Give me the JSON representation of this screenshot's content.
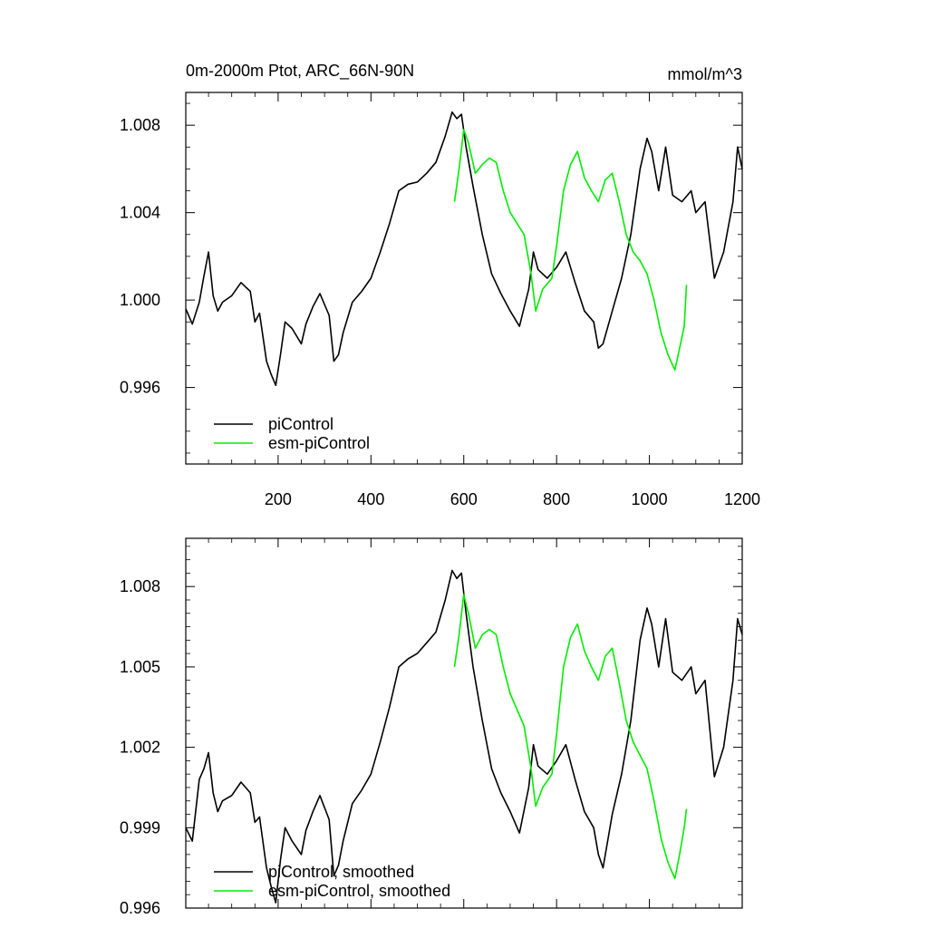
{
  "header": {
    "title": "0m-2000m Ptot, ARC_66N-90N",
    "units": "mmol/m^3"
  },
  "colors": {
    "piControl": "#000000",
    "esm_piControl": "#00ee00",
    "axis": "#000000"
  },
  "chart_data": [
    {
      "type": "line",
      "title": "0m-2000m Ptot, ARC_66N-90N",
      "units_label": "mmol/m^3",
      "xlim": [
        1,
        1200
      ],
      "ylim": [
        0.9925,
        1.0095
      ],
      "x_ticks": [
        200,
        400,
        600,
        800,
        1000,
        1200
      ],
      "x_tick_labels": [
        "200",
        "400",
        "600",
        "800",
        "1000",
        "1200"
      ],
      "y_ticks": [
        0.996,
        1.0,
        1.004,
        1.008
      ],
      "y_tick_labels": [
        "0.996",
        "1.000",
        "1.004",
        "1.008"
      ],
      "legend_position": "bottom-left",
      "series": [
        {
          "name": "piControl",
          "color": "#000000",
          "x": [
            1,
            15,
            30,
            40,
            50,
            60,
            70,
            80,
            100,
            120,
            140,
            150,
            160,
            175,
            185,
            195,
            205,
            215,
            230,
            250,
            260,
            275,
            290,
            310,
            320,
            330,
            340,
            360,
            380,
            400,
            420,
            440,
            460,
            480,
            500,
            520,
            540,
            560,
            575,
            585,
            595,
            605,
            620,
            640,
            660,
            680,
            700,
            720,
            740,
            750,
            760,
            780,
            800,
            820,
            840,
            860,
            880,
            890,
            900,
            920,
            940,
            960,
            980,
            995,
            1005,
            1020,
            1035,
            1050,
            1070,
            1090,
            1100,
            1120,
            1140,
            1160,
            1180,
            1190,
            1200
          ],
          "y": [
            0.9996,
            0.9989,
            0.9999,
            1.0011,
            1.0022,
            1.0002,
            0.9995,
            0.9999,
            1.0002,
            1.0008,
            1.0004,
            0.999,
            0.9994,
            0.9972,
            0.9966,
            0.9961,
            0.9975,
            0.999,
            0.9987,
            0.998,
            0.9989,
            0.9997,
            1.0003,
            0.9993,
            0.9972,
            0.9975,
            0.9985,
            0.9999,
            1.0004,
            1.001,
            1.0022,
            1.0035,
            1.005,
            1.0053,
            1.0054,
            1.0058,
            1.0063,
            1.0075,
            1.0086,
            1.0083,
            1.0085,
            1.007,
            1.0052,
            1.003,
            1.0012,
            1.0003,
            0.9995,
            0.9988,
            1.0005,
            1.0022,
            1.0014,
            1.001,
            1.0015,
            1.0022,
            1.0008,
            0.9995,
            0.999,
            0.9978,
            0.998,
            0.9995,
            1.001,
            1.003,
            1.006,
            1.0074,
            1.0068,
            1.005,
            1.007,
            1.0048,
            1.0045,
            1.005,
            1.004,
            1.0045,
            1.001,
            1.0022,
            1.0045,
            1.007,
            1.006
          ]
        },
        {
          "name": "esm-piControl",
          "color": "#00ee00",
          "x": [
            580,
            590,
            600,
            610,
            625,
            640,
            655,
            670,
            685,
            700,
            715,
            730,
            745,
            755,
            770,
            790,
            800,
            815,
            830,
            845,
            860,
            875,
            890,
            905,
            920,
            935,
            950,
            965,
            980,
            995,
            1010,
            1025,
            1040,
            1055,
            1065,
            1075,
            1080
          ],
          "y": [
            1.0045,
            1.006,
            1.0078,
            1.0072,
            1.0058,
            1.0062,
            1.0065,
            1.0063,
            1.005,
            1.004,
            1.0035,
            1.003,
            1.0012,
            0.9995,
            1.0005,
            1.001,
            1.0025,
            1.005,
            1.0062,
            1.0068,
            1.0056,
            1.005,
            1.0045,
            1.0055,
            1.0058,
            1.0045,
            1.003,
            1.0022,
            1.0018,
            1.0012,
            1.0,
            0.9985,
            0.9975,
            0.9968,
            0.9978,
            0.9988,
            1.0007
          ]
        }
      ]
    },
    {
      "type": "line",
      "xlim": [
        1,
        1200
      ],
      "ylim": [
        0.996,
        1.0098
      ],
      "x_ticks": [
        200,
        400,
        600,
        800,
        1000,
        1200
      ],
      "y_ticks": [
        0.996,
        0.999,
        1.002,
        1.005,
        1.008
      ],
      "y_tick_labels": [
        "0.996",
        "0.999",
        "1.002",
        "1.005",
        "1.008"
      ],
      "legend_position": "bottom-left",
      "series": [
        {
          "name": "piControl, smoothed",
          "color": "#000000",
          "x": [
            1,
            15,
            30,
            40,
            50,
            60,
            70,
            80,
            100,
            120,
            140,
            150,
            160,
            175,
            185,
            195,
            205,
            215,
            230,
            250,
            260,
            275,
            290,
            310,
            320,
            330,
            340,
            360,
            380,
            400,
            420,
            440,
            460,
            480,
            500,
            520,
            540,
            560,
            575,
            585,
            595,
            605,
            620,
            640,
            660,
            680,
            700,
            720,
            740,
            750,
            760,
            780,
            800,
            820,
            840,
            860,
            880,
            890,
            900,
            920,
            940,
            960,
            980,
            995,
            1005,
            1020,
            1035,
            1050,
            1070,
            1090,
            1100,
            1120,
            1140,
            1160,
            1180,
            1190,
            1200
          ],
          "y": [
            0.999,
            0.9985,
            1.0008,
            1.0012,
            1.0018,
            1.0003,
            0.9996,
            1.0,
            1.0002,
            1.0007,
            1.0003,
            0.9992,
            0.9994,
            0.9975,
            0.9968,
            0.9962,
            0.9978,
            0.999,
            0.9985,
            0.998,
            0.9989,
            0.9996,
            1.0002,
            0.9993,
            0.9972,
            0.9976,
            0.9985,
            0.9999,
            1.0004,
            1.001,
            1.0022,
            1.0035,
            1.005,
            1.0053,
            1.0055,
            1.0059,
            1.0063,
            1.0075,
            1.0086,
            1.0083,
            1.0085,
            1.007,
            1.005,
            1.003,
            1.0012,
            1.0003,
            0.9996,
            0.9988,
            1.0005,
            1.0021,
            1.0013,
            1.001,
            1.0015,
            1.0021,
            1.0008,
            0.9996,
            0.999,
            0.998,
            0.9975,
            0.9995,
            1.001,
            1.003,
            1.006,
            1.0072,
            1.0066,
            1.005,
            1.0068,
            1.0048,
            1.0045,
            1.005,
            1.004,
            1.0045,
            1.0009,
            1.002,
            1.0045,
            1.0068,
            1.0062
          ]
        },
        {
          "name": "esm-piControl, smoothed",
          "color": "#00ee00",
          "x": [
            580,
            590,
            600,
            610,
            625,
            640,
            655,
            670,
            685,
            700,
            715,
            730,
            745,
            755,
            770,
            790,
            800,
            815,
            830,
            845,
            860,
            875,
            890,
            905,
            920,
            935,
            950,
            965,
            980,
            995,
            1010,
            1025,
            1040,
            1055,
            1065,
            1075,
            1080
          ],
          "y": [
            1.005,
            1.0062,
            1.0077,
            1.007,
            1.0057,
            1.0062,
            1.0064,
            1.0062,
            1.005,
            1.004,
            1.0034,
            1.0028,
            1.0012,
            0.9998,
            1.0005,
            1.001,
            1.0025,
            1.005,
            1.0061,
            1.0066,
            1.0056,
            1.005,
            1.0045,
            1.0054,
            1.0057,
            1.0044,
            1.003,
            1.0022,
            1.0017,
            1.0012,
            1.0,
            0.9986,
            0.9977,
            0.9971,
            0.998,
            0.999,
            0.9997
          ]
        }
      ]
    }
  ]
}
